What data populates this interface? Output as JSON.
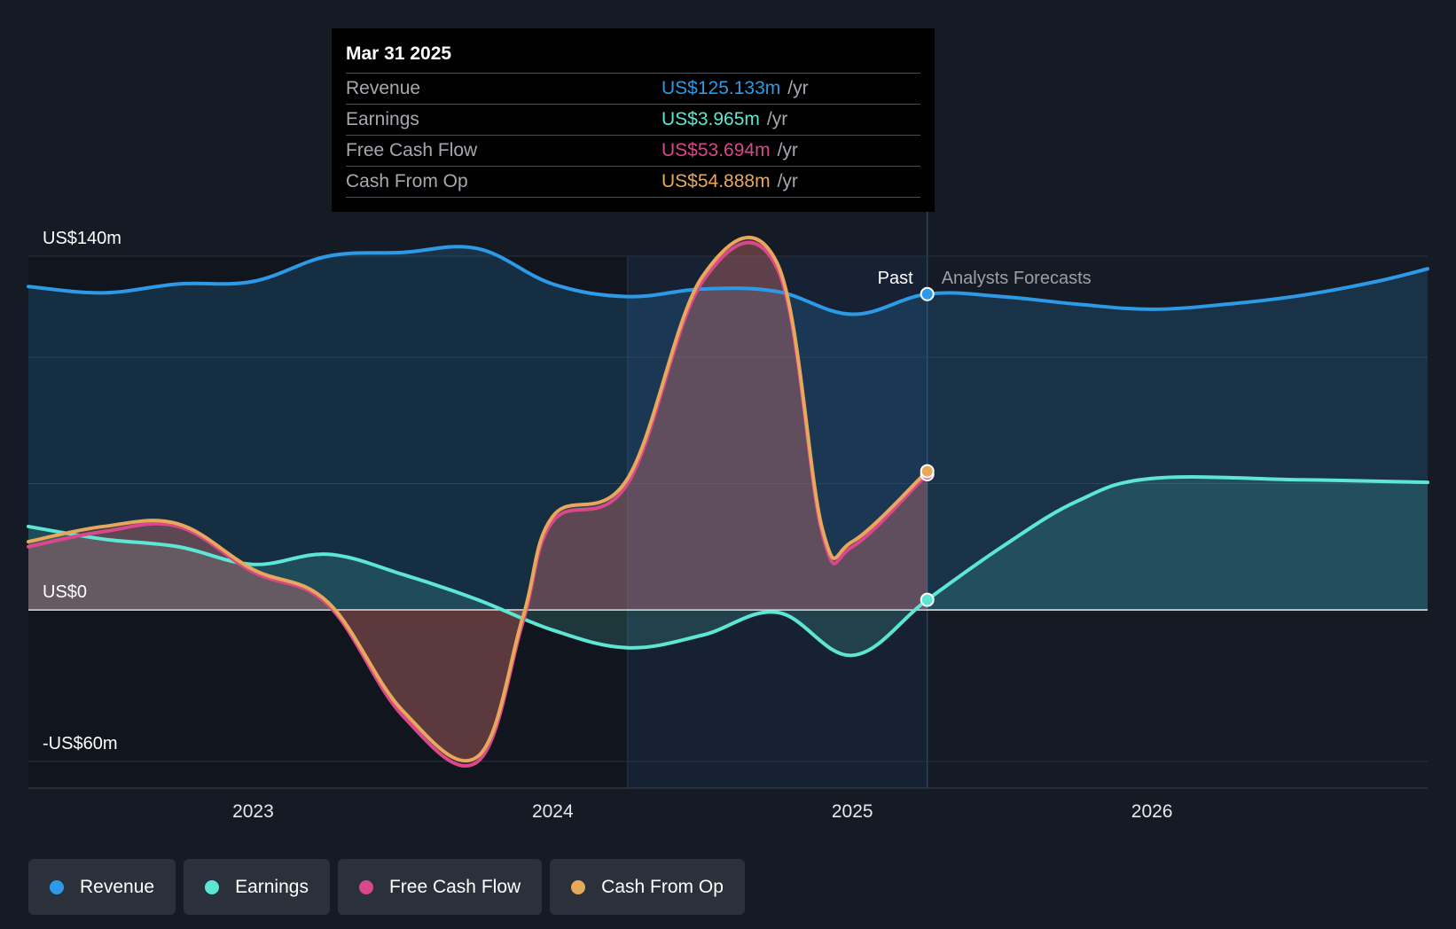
{
  "tooltip": {
    "date": "Mar 31 2025",
    "rows": [
      {
        "name": "Revenue",
        "value": "US$125.133m",
        "unit": "/yr",
        "color": "#2d9ae8"
      },
      {
        "name": "Earnings",
        "value": "US$3.965m",
        "unit": "/yr",
        "color": "#5ee6d4"
      },
      {
        "name": "Free Cash Flow",
        "value": "US$53.694m",
        "unit": "/yr",
        "color": "#d8488a"
      },
      {
        "name": "Cash From Op",
        "value": "US$54.888m",
        "unit": "/yr",
        "color": "#e8a85c"
      }
    ]
  },
  "labels": {
    "past": "Past",
    "forecast": "Analysts Forecasts"
  },
  "legend": [
    {
      "name": "Revenue",
      "color": "#2d9ae8"
    },
    {
      "name": "Earnings",
      "color": "#5ee6d4"
    },
    {
      "name": "Free Cash Flow",
      "color": "#d8488a"
    },
    {
      "name": "Cash From Op",
      "color": "#e8a85c"
    }
  ],
  "chart_data": {
    "type": "line",
    "title": "",
    "xlabel": "",
    "ylabel": "",
    "ylim": [
      -60,
      140
    ],
    "xlim": [
      2022.25,
      2026.92
    ],
    "y_ticks": [
      {
        "value": 140,
        "label": "US$140m"
      },
      {
        "value": 0,
        "label": "US$0"
      },
      {
        "value": -60,
        "label": "-US$60m"
      }
    ],
    "x_ticks": [
      {
        "value": 2023.0,
        "label": "2023"
      },
      {
        "value": 2024.0,
        "label": "2024"
      },
      {
        "value": 2025.0,
        "label": "2025"
      },
      {
        "value": 2026.0,
        "label": "2026"
      }
    ],
    "past_end": 2025.25,
    "highlight_start": 2024.25,
    "series": [
      {
        "name": "Revenue",
        "color": "#2d9ae8",
        "x": [
          2022.25,
          2022.5,
          2022.75,
          2023.0,
          2023.25,
          2023.5,
          2023.75,
          2024.0,
          2024.25,
          2024.5,
          2024.75,
          2025.0,
          2025.25,
          2025.5,
          2025.75,
          2026.0,
          2026.25,
          2026.5,
          2026.75,
          2026.92
        ],
        "y": [
          128,
          125.5,
          129,
          130,
          140,
          141.5,
          143,
          129,
          124,
          127,
          126,
          117,
          125,
          124,
          121,
          119,
          121,
          124.5,
          130,
          135
        ]
      },
      {
        "name": "Earnings",
        "color": "#5ee6d4",
        "x": [
          2022.25,
          2022.5,
          2022.75,
          2023.0,
          2023.25,
          2023.5,
          2023.75,
          2024.0,
          2024.25,
          2024.5,
          2024.75,
          2025.0,
          2025.25,
          2025.5,
          2025.75,
          2026.0,
          2026.5,
          2026.92
        ],
        "y": [
          33,
          28,
          25,
          18,
          22,
          14,
          4,
          -8,
          -15,
          -10,
          -1,
          -18,
          4,
          25,
          43,
          52,
          51.5,
          50.5
        ]
      },
      {
        "name": "Free Cash Flow",
        "color": "#d8488a",
        "x": [
          2022.25,
          2022.5,
          2022.75,
          2023.0,
          2023.25,
          2023.5,
          2023.75,
          2023.9,
          2024.0,
          2024.25,
          2024.5,
          2024.75,
          2024.9,
          2025.0,
          2025.25
        ],
        "y": [
          25,
          31,
          33,
          15,
          2,
          -42,
          -60,
          -5,
          35,
          50,
          130,
          135,
          30,
          25,
          53.694
        ]
      },
      {
        "name": "Cash From Op",
        "color": "#e8a85c",
        "x": [
          2022.25,
          2022.5,
          2022.75,
          2023.0,
          2023.25,
          2023.5,
          2023.75,
          2023.9,
          2024.0,
          2024.25,
          2024.5,
          2024.75,
          2024.9,
          2025.0,
          2025.25
        ],
        "y": [
          27,
          33,
          34,
          16,
          3,
          -40,
          -58,
          -3,
          37,
          52,
          132,
          137,
          32,
          27,
          54.888
        ]
      }
    ]
  }
}
